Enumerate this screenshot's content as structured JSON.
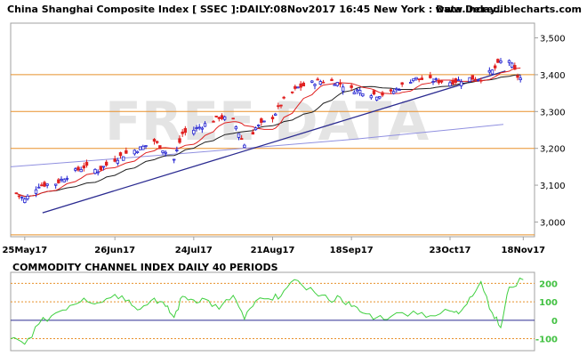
{
  "header": {
    "title": "China Shanghai Composite Index [ SSEC ]:DAILY:08Nov2017 16:45 New York : Data Delay..",
    "site": "www.incrediblecharts.com"
  },
  "watermark": "FREE DATA",
  "colors": {
    "frame": "#a0a0a0",
    "orange_lines": "#e8902a",
    "trend": "#2a2a90",
    "ma_long": "#9090e0",
    "ma_mid": "#202020",
    "ma_short": "#e02020",
    "up_candle": "#2020d0",
    "down_candle": "#e02020",
    "indicator": "#40d040",
    "indicator_levels": "#e8902a",
    "zero_line": "#2a2a90"
  },
  "chart_data": [
    {
      "type": "candlestick",
      "title": "China Shanghai Composite Index [ SSEC ]:DAILY:08Nov2017 16:45 New York : Data Delay..",
      "x_tick_labels": [
        "25May17",
        "26Jun17",
        "24Jul17",
        "21Aug17",
        "18Sep17",
        "23Oct17",
        "18Nov17"
      ],
      "y_tick_labels": [
        "3,000",
        "3,100",
        "3,200",
        "3,300",
        "3,400",
        "3,500"
      ],
      "y_ticks": [
        3000,
        3100,
        3200,
        3300,
        3400,
        3500
      ],
      "ylim": [
        2960,
        3540
      ],
      "horizontal_lines": [
        3400,
        3300,
        3200,
        2965
      ],
      "trendline": {
        "start": [
          "25May17",
          3025
        ],
        "end": [
          "18Nov17",
          3410
        ]
      },
      "close_path": [
        [
          "20May17",
          3090
        ],
        [
          "25May17",
          3060
        ],
        [
          "30May17",
          3100
        ],
        [
          "05Jun17",
          3105
        ],
        [
          "10Jun17",
          3130
        ],
        [
          "15Jun17",
          3150
        ],
        [
          "20Jun17",
          3140
        ],
        [
          "26Jun17",
          3170
        ],
        [
          "01Jul17",
          3190
        ],
        [
          "05Jul17",
          3200
        ],
        [
          "10Jul17",
          3220
        ],
        [
          "14Jul17",
          3190
        ],
        [
          "17Jul17",
          3170
        ],
        [
          "20Jul17",
          3240
        ],
        [
          "24Jul17",
          3250
        ],
        [
          "28Jul17",
          3265
        ],
        [
          "02Aug17",
          3285
        ],
        [
          "07Aug17",
          3275
        ],
        [
          "11Aug17",
          3210
        ],
        [
          "15Aug17",
          3255
        ],
        [
          "21Aug17",
          3285
        ],
        [
          "25Aug17",
          3330
        ],
        [
          "30Aug17",
          3365
        ],
        [
          "05Sep17",
          3380
        ],
        [
          "10Sep17",
          3385
        ],
        [
          "14Sep17",
          3375
        ],
        [
          "18Sep17",
          3360
        ],
        [
          "22Sep17",
          3355
        ],
        [
          "27Sep17",
          3345
        ],
        [
          "02Oct17",
          3350
        ],
        [
          "10Oct17",
          3390
        ],
        [
          "16Oct17",
          3385
        ],
        [
          "23Oct17",
          3380
        ],
        [
          "30Oct17",
          3390
        ],
        [
          "03Nov17",
          3390
        ],
        [
          "07Nov17",
          3410
        ],
        [
          "10Nov17",
          3435
        ],
        [
          "13Nov17",
          3440
        ],
        [
          "16Nov17",
          3395
        ],
        [
          "18Nov17",
          3385
        ]
      ]
    },
    {
      "type": "line",
      "title": "COMMODITY CHANNEL INDEX DAILY 40 PERIODS",
      "y_tick_labels": [
        "200",
        "100",
        "0",
        "-100"
      ],
      "y_ticks": [
        200,
        100,
        0,
        -100
      ],
      "ylim": [
        -165,
        260
      ],
      "levels": [
        200,
        100,
        0,
        -100
      ],
      "series": [
        {
          "name": "",
          "x": [
            "20May17",
            "25May17",
            "30May17",
            "05Jun17",
            "10Jun17",
            "15Jun17",
            "20Jun17",
            "26Jun17",
            "01Jul17",
            "05Jul17",
            "10Jul17",
            "14Jul17",
            "17Jul17",
            "20Jul17",
            "24Jul17",
            "28Jul17",
            "02Aug17",
            "07Aug17",
            "11Aug17",
            "15Aug17",
            "21Aug17",
            "25Aug17",
            "30Aug17",
            "05Sep17",
            "10Sep17",
            "14Sep17",
            "18Sep17",
            "22Sep17",
            "27Sep17",
            "02Oct17",
            "10Oct17",
            "16Oct17",
            "23Oct17",
            "26Oct17",
            "30Oct17",
            "03Nov17",
            "07Nov17",
            "10Nov17",
            "13Nov17",
            "18Nov17"
          ],
          "y": [
            -100,
            -130,
            -20,
            40,
            80,
            120,
            95,
            140,
            110,
            60,
            120,
            75,
            15,
            130,
            110,
            115,
            60,
            135,
            5,
            105,
            110,
            160,
            215,
            150,
            110,
            125,
            75,
            40,
            15,
            20,
            50,
            25,
            50,
            35,
            125,
            210,
            40,
            -40,
            180,
            220
          ]
        }
      ]
    }
  ]
}
